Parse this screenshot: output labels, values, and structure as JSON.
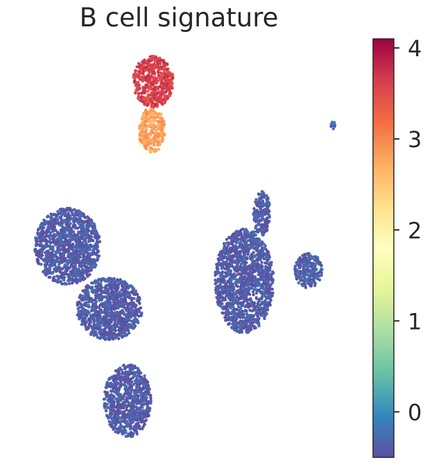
{
  "chart_data": {
    "type": "scatter",
    "title": "B cell signature",
    "xlabel": "",
    "ylabel": "",
    "colorbar": {
      "colormap": "Spectral_r",
      "range": [
        -0.5,
        4.1
      ],
      "ticks": [
        0,
        1,
        2,
        3,
        4
      ],
      "tick_labels": [
        "0",
        "1",
        "2",
        "3",
        "4"
      ]
    },
    "point_color_default": "#5e4fa2",
    "clusters": [
      {
        "x": [
          50,
          145
        ],
        "y": [
          300,
          410
        ],
        "value": -0.4
      },
      {
        "x": [
          110,
          205
        ],
        "y": [
          400,
          490
        ],
        "value": -0.4
      },
      {
        "x": [
          150,
          218
        ],
        "y": [
          525,
          630
        ],
        "value": -0.4
      },
      {
        "x": [
          310,
          395
        ],
        "y": [
          330,
          480
        ],
        "value": -0.4
      },
      {
        "x": [
          365,
          390
        ],
        "y": [
          275,
          340
        ],
        "value": -0.4
      },
      {
        "x": [
          425,
          465
        ],
        "y": [
          365,
          415
        ],
        "value": -0.35
      },
      {
        "x": [
          192,
          250
        ],
        "y": [
          80,
          155
        ],
        "value": 3.6
      },
      {
        "x": [
          200,
          238
        ],
        "y": [
          155,
          220
        ],
        "value": 2.8
      },
      {
        "x": [
          477,
          486
        ],
        "y": [
          175,
          186
        ],
        "value": -0.3
      }
    ]
  }
}
